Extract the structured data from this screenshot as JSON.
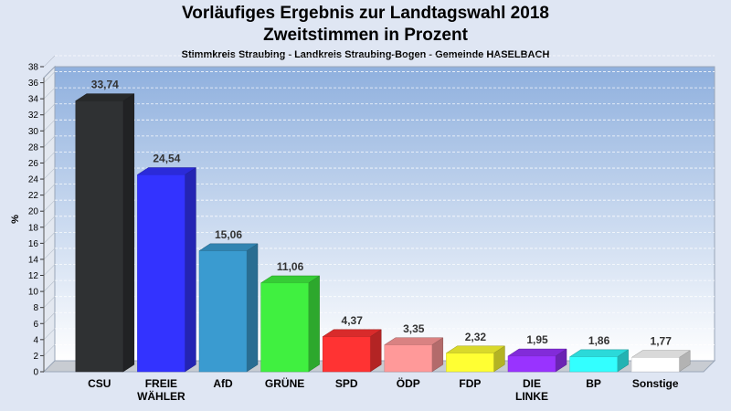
{
  "chart_data": {
    "type": "bar",
    "title": "Vorläufiges Ergebnis zur Landtagswahl 2018",
    "title_line2": "Zweitstimmen in Prozent",
    "subtitle": "Stimmkreis Straubing - Landkreis Straubing-Bogen - Gemeinde HASELBACH",
    "ylabel": "%",
    "ylim": [
      0,
      38
    ],
    "ytick_step": 2,
    "grid": true,
    "categories": [
      [
        "CSU"
      ],
      [
        "FREIE",
        "WÄHLER"
      ],
      [
        "AfD"
      ],
      [
        "GRÜNE"
      ],
      [
        "SPD"
      ],
      [
        "ÖDP"
      ],
      [
        "FDP"
      ],
      [
        "DIE",
        "LINKE"
      ],
      [
        "BP"
      ],
      [
        "Sonstige"
      ]
    ],
    "values": [
      33.74,
      24.54,
      15.06,
      11.06,
      4.37,
      3.35,
      2.32,
      1.95,
      1.86,
      1.77
    ],
    "value_labels": [
      "33,74",
      "24,54",
      "15,06",
      "11,06",
      "4,37",
      "3,35",
      "2,32",
      "1,95",
      "1,86",
      "1,77"
    ],
    "colors": [
      "#2f3133",
      "#3333ff",
      "#3a9bd0",
      "#40f040",
      "#ff3333",
      "#ff9999",
      "#ffff33",
      "#9933ff",
      "#33ffff",
      "#ffffff"
    ]
  }
}
